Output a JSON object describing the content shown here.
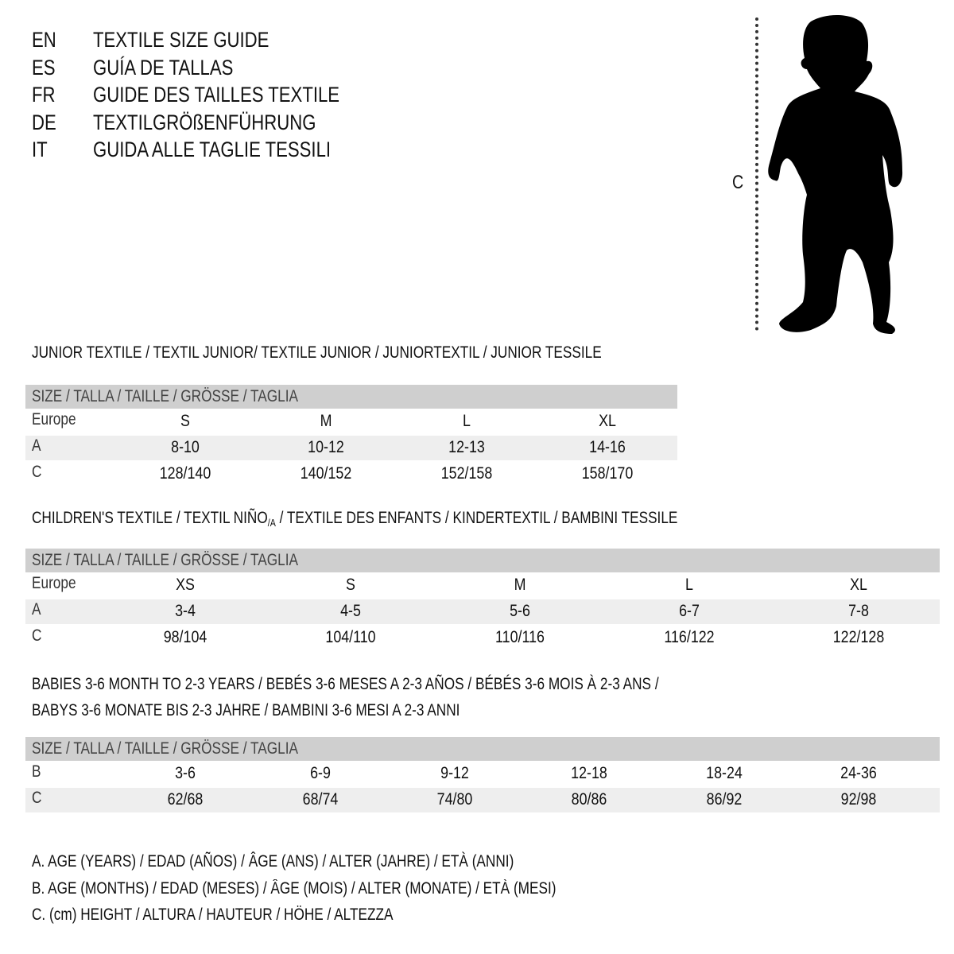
{
  "titles": [
    {
      "code": "EN",
      "text": "TEXTILE SIZE GUIDE"
    },
    {
      "code": "ES",
      "text": "GUÍA DE TALLAS"
    },
    {
      "code": "FR",
      "text": "GUIDE DES TAILLES TEXTILE"
    },
    {
      "code": "DE",
      "text": "TEXTILGRÖßENFÜHRUNG"
    },
    {
      "code": "IT",
      "text": "GUIDA ALLE TAGLIE TESSILI"
    }
  ],
  "figure": {
    "label": "C",
    "icon": "child-silhouette"
  },
  "junior": {
    "title": "JUNIOR TEXTILE / TEXTIL JUNIOR/ TEXTILE JUNIOR / JUNIORTEXTIL / JUNIOR TESSILE",
    "header": "SIZE / TALLA / TAILLE / GRÖSSE / TAGLIA",
    "rows": [
      {
        "label": "Europe",
        "cells": [
          "S",
          "M",
          "L",
          "XL"
        ]
      },
      {
        "label": "A",
        "cells": [
          "8-10",
          "10-12",
          "12-13",
          "14-16"
        ]
      },
      {
        "label": "C",
        "cells": [
          "128/140",
          "140/152",
          "152/158",
          "158/170"
        ]
      }
    ]
  },
  "children": {
    "title_a": "CHILDREN'S TEXTILE / TEXTIL NIÑO",
    "title_sub": "/A",
    "title_b": " / TEXTILE DES ENFANTS / KINDERTEXTIL / BAMBINI TESSILE",
    "header": "SIZE / TALLA / TAILLE / GRÖSSE / TAGLIA",
    "rows": [
      {
        "label": "Europe",
        "cells": [
          "XS",
          "S",
          "M",
          "L",
          "XL"
        ]
      },
      {
        "label": "A",
        "cells": [
          "3-4",
          "4-5",
          "5-6",
          "6-7",
          "7-8"
        ]
      },
      {
        "label": "C",
        "cells": [
          "98/104",
          "104/110",
          "110/116",
          "116/122",
          "122/128"
        ]
      }
    ]
  },
  "babies": {
    "title_line1": "BABIES 3-6 MONTH TO 2-3 YEARS / BEBÉS 3-6 MESES A 2-3 AÑOS / BÉBÉS 3-6 MOIS À 2-3 ANS /",
    "title_line2": "BABYS 3-6 MONATE BIS 2-3 JAHRE / BAMBINI 3-6 MESI A 2-3 ANNI",
    "header": "SIZE / TALLA / TAILLE / GRÖSSE / TAGLIA",
    "rows": [
      {
        "label": "B",
        "cells": [
          "3-6",
          "6-9",
          "9-12",
          "12-18",
          "18-24",
          "24-36"
        ]
      },
      {
        "label": "C",
        "cells": [
          "62/68",
          "68/74",
          "74/80",
          "80/86",
          "86/92",
          "92/98"
        ]
      }
    ]
  },
  "legend": [
    "A. AGE (YEARS) / EDAD (AÑOS) / ÂGE (ANS) / ALTER (JAHRE) / ETÀ (ANNI)",
    "B. AGE (MONTHS) / EDAD (MESES) / ÂGE (MOIS) / ALTER (MONATE) / ETÀ (MESI)",
    "C. (cm) HEIGHT / ALTURA / HAUTEUR / HÖHE / ALTEZZA"
  ]
}
